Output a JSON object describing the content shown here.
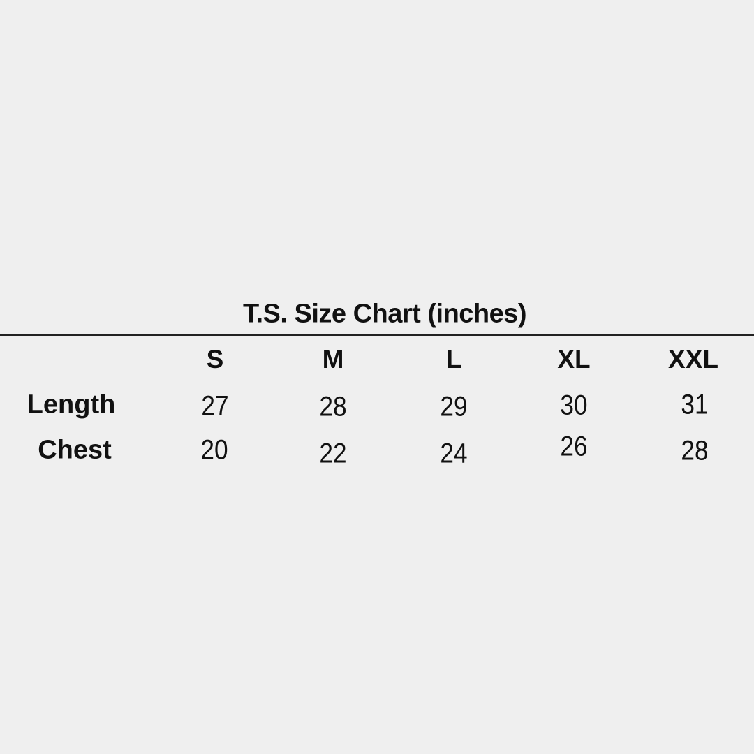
{
  "title": "T.S. Size Chart (inches)",
  "columns": [
    "S",
    "M",
    "L",
    "XL",
    "XXL"
  ],
  "rows": [
    {
      "label": "Length",
      "values": [
        "27",
        "28",
        "29",
        "30",
        "31"
      ]
    },
    {
      "label": "Chest",
      "values": [
        "20",
        "22",
        "24",
        "26",
        "28"
      ]
    }
  ]
}
